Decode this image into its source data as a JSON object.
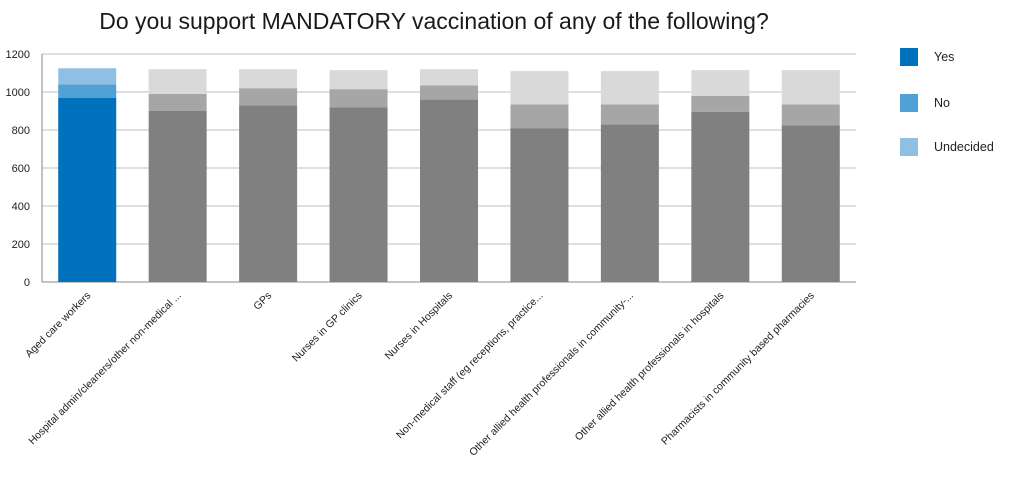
{
  "chart_data": {
    "type": "bar",
    "stacked": true,
    "title": "Do you support MANDATORY vaccination of any of the following?",
    "categories": [
      "Aged care workers",
      "Hospital admin/cleaners/other non-medical ...",
      "GPs",
      "Nurses in GP clinics",
      "Nurses in Hospitals",
      "Non-medical staff (eg receptions, practice...",
      "Other allied health professionals in community-...",
      "Other allied health professionals in hospitals",
      "Pharmacists in community based pharmacies"
    ],
    "series": [
      {
        "name": "Yes",
        "values": [
          970,
          900,
          930,
          920,
          960,
          810,
          830,
          895,
          825
        ]
      },
      {
        "name": "No",
        "values": [
          70,
          90,
          90,
          95,
          75,
          125,
          105,
          85,
          110
        ]
      },
      {
        "name": "Undecided",
        "values": [
          85,
          130,
          100,
          100,
          85,
          175,
          175,
          135,
          180
        ]
      }
    ],
    "highlight_index": 0,
    "highlight_colors": [
      "#0071bc",
      "#4fa1d6",
      "#8fc0e3"
    ],
    "muted_colors": [
      "#808080",
      "#a6a6a6",
      "#d9d9d9"
    ],
    "legend_colors": [
      "#0071bc",
      "#4fa1d6",
      "#8fc0e3"
    ],
    "yticks": [
      0,
      200,
      400,
      600,
      800,
      1000,
      1200
    ],
    "ylim": [
      0,
      1200
    ],
    "grid": true,
    "legend_position": "right"
  }
}
